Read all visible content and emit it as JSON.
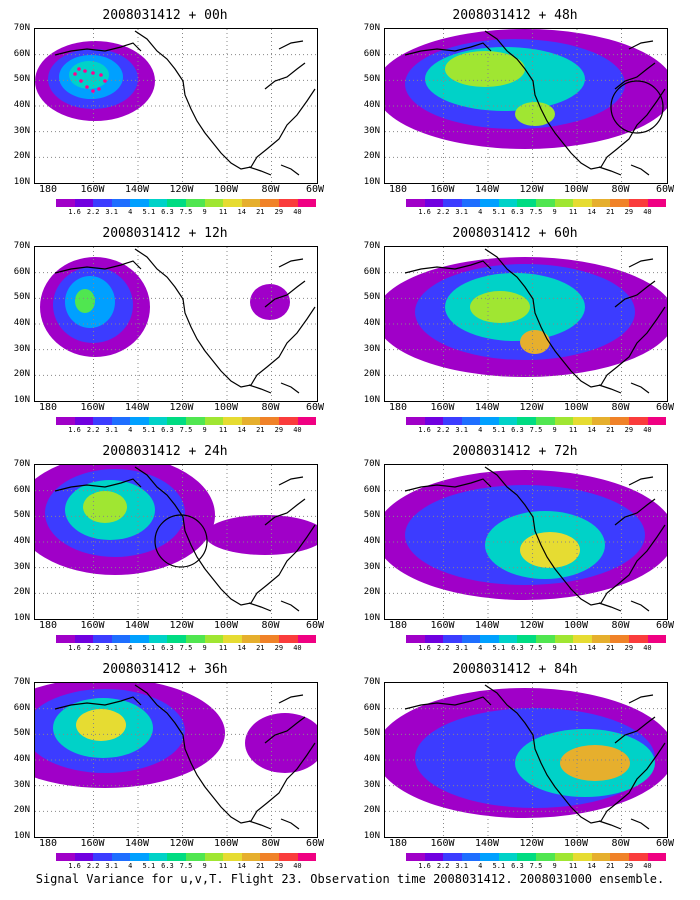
{
  "panels": [
    {
      "title": "2008031412 + 00h"
    },
    {
      "title": "2008031412 + 48h"
    },
    {
      "title": "2008031412 + 12h"
    },
    {
      "title": "2008031412 + 60h"
    },
    {
      "title": "2008031412 + 24h"
    },
    {
      "title": "2008031412 + 72h"
    },
    {
      "title": "2008031412 + 36h"
    },
    {
      "title": "2008031412 + 84h"
    }
  ],
  "lat_labels": [
    "70N",
    "60N",
    "50N",
    "40N",
    "30N",
    "20N",
    "10N"
  ],
  "lon_labels": [
    "180",
    "160W",
    "140W",
    "120W",
    "100W",
    "80W",
    "60W"
  ],
  "colorbar": {
    "labels": [
      "1.6",
      "2.2",
      "3.1",
      "4",
      "5.1",
      "6.3",
      "7.5",
      "9",
      "11",
      "14",
      "21",
      "29",
      "40"
    ],
    "colors": [
      "#a000c8",
      "#7000e0",
      "#3c3cff",
      "#1e6eff",
      "#00a0ff",
      "#00d2c8",
      "#00dc82",
      "#50e650",
      "#a0e632",
      "#e6dc32",
      "#e6af2d",
      "#f08228",
      "#fa3c3c",
      "#f00082"
    ]
  },
  "caption": "Signal Variance for u,v,T. Flight 23. Observation time 2008031412. 2008031000 ensemble."
}
